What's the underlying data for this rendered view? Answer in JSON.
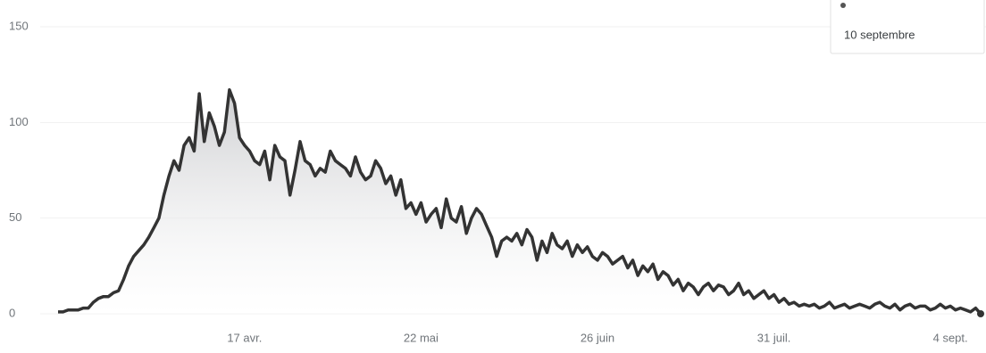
{
  "chart_data": {
    "type": "line",
    "categories": [
      null,
      null,
      null,
      null,
      null,
      null,
      null,
      null,
      null,
      null,
      null,
      null,
      null,
      null,
      null,
      null,
      null,
      null,
      null,
      null,
      null,
      null,
      null,
      null,
      null,
      null,
      null,
      null,
      null,
      null,
      null,
      null,
      null,
      null,
      null,
      null,
      null,
      "17 avr.",
      null,
      null,
      null,
      null,
      null,
      null,
      null,
      null,
      null,
      null,
      null,
      null,
      null,
      null,
      null,
      null,
      null,
      null,
      null,
      null,
      null,
      null,
      null,
      null,
      null,
      null,
      null,
      null,
      null,
      null,
      null,
      null,
      null,
      null,
      "22 mai",
      null,
      null,
      null,
      null,
      null,
      null,
      null,
      null,
      null,
      null,
      null,
      null,
      null,
      null,
      null,
      null,
      null,
      null,
      null,
      null,
      null,
      null,
      null,
      null,
      null,
      null,
      null,
      null,
      null,
      null,
      null,
      null,
      null,
      null,
      "26 juin",
      null,
      null,
      null,
      null,
      null,
      null,
      null,
      null,
      null,
      null,
      null,
      null,
      null,
      null,
      null,
      null,
      null,
      null,
      null,
      null,
      null,
      null,
      null,
      null,
      null,
      null,
      null,
      null,
      null,
      null,
      null,
      null,
      null,
      null,
      "31 juil.",
      null,
      null,
      null,
      null,
      null,
      null,
      null,
      null,
      null,
      null,
      null,
      null,
      null,
      null,
      null,
      null,
      null,
      null,
      null,
      null,
      null,
      null,
      null,
      null,
      null,
      null,
      null,
      null,
      null,
      null,
      null,
      null,
      null,
      null,
      "4 sept.",
      null,
      null,
      null,
      null,
      null,
      null
    ],
    "values": [
      1,
      1,
      2,
      2,
      2,
      3,
      3,
      6,
      8,
      9,
      9,
      11,
      12,
      18,
      25,
      30,
      33,
      36,
      40,
      45,
      50,
      62,
      72,
      80,
      75,
      88,
      92,
      85,
      115,
      90,
      105,
      98,
      88,
      95,
      117,
      110,
      92,
      88,
      85,
      80,
      78,
      85,
      70,
      88,
      82,
      80,
      62,
      75,
      90,
      80,
      78,
      72,
      76,
      74,
      85,
      80,
      78,
      76,
      72,
      82,
      74,
      70,
      72,
      80,
      76,
      68,
      72,
      62,
      70,
      55,
      58,
      52,
      58,
      48,
      52,
      55,
      45,
      60,
      50,
      48,
      56,
      42,
      50,
      55,
      52,
      46,
      40,
      30,
      38,
      40,
      38,
      42,
      36,
      44,
      40,
      28,
      38,
      32,
      42,
      36,
      34,
      38,
      30,
      36,
      32,
      35,
      30,
      28,
      32,
      30,
      26,
      28,
      30,
      24,
      28,
      20,
      25,
      22,
      26,
      18,
      22,
      20,
      15,
      18,
      12,
      16,
      14,
      10,
      14,
      16,
      12,
      15,
      14,
      10,
      12,
      16,
      10,
      12,
      8,
      10,
      12,
      8,
      10,
      6,
      8,
      5,
      6,
      4,
      5,
      4,
      5,
      3,
      4,
      6,
      3,
      4,
      5,
      3,
      4,
      5,
      4,
      3,
      5,
      6,
      4,
      3,
      5,
      2,
      4,
      5,
      3,
      4,
      4,
      2,
      3,
      5,
      3,
      4,
      2,
      3,
      2,
      1,
      3,
      0
    ],
    "color": "#333333",
    "ylim": [
      0,
      150
    ],
    "yticks": [
      0,
      50,
      100,
      150
    ],
    "grid": true,
    "tooltip": "10 septembre"
  }
}
